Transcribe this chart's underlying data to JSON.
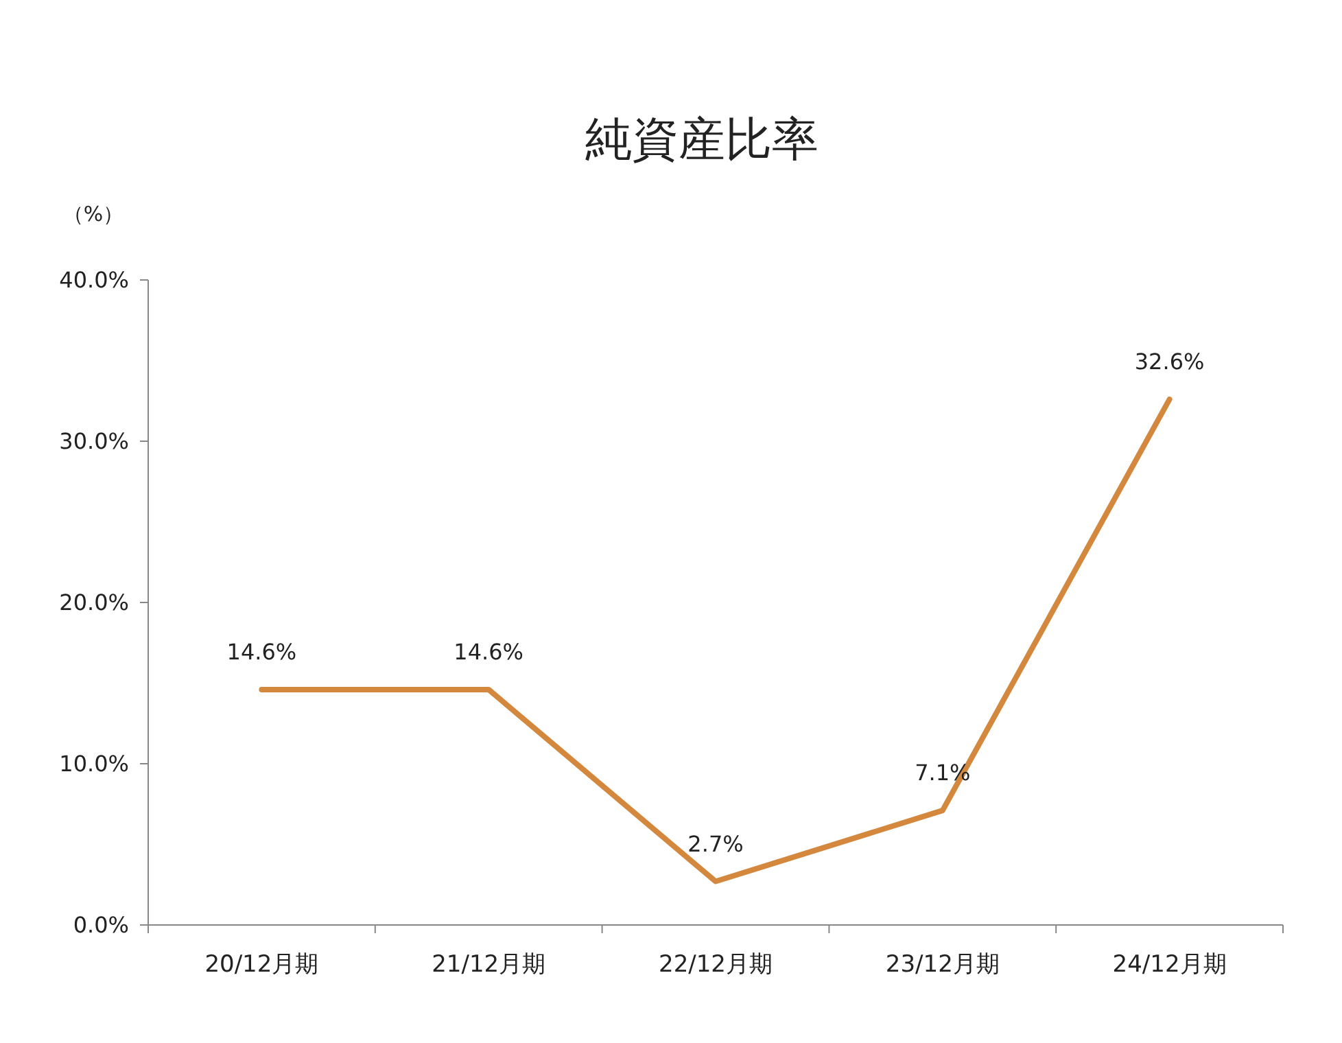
{
  "chart_data": {
    "type": "line",
    "title": "純資産比率",
    "ylabel": "（%）",
    "categories": [
      "20/12月期",
      "21/12月期",
      "22/12月期",
      "23/12月期",
      "24/12月期"
    ],
    "series": [
      {
        "color": "#d4883e",
        "values": [
          14.6,
          14.6,
          2.7,
          7.1,
          32.6
        ]
      }
    ],
    "value_labels": [
      "14.6%",
      "14.6%",
      "2.7%",
      "7.1%",
      "32.6%"
    ],
    "ylim": [
      0,
      40
    ],
    "yticks": [
      {
        "value": 0,
        "label": "0.0%"
      },
      {
        "value": 10,
        "label": "10.0%"
      },
      {
        "value": 20,
        "label": "20.0%"
      },
      {
        "value": 30,
        "label": "30.0%"
      },
      {
        "value": 40,
        "label": "40.0%"
      }
    ],
    "grid": false,
    "marker": "none",
    "line_style": "solid"
  }
}
